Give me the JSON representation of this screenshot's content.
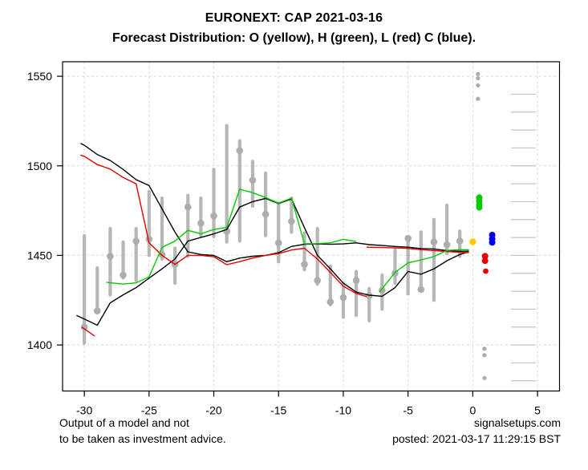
{
  "header": {
    "title": "EURONEXT: CAP 2021-03-16",
    "subtitle": "Forecast Distribution: O (yellow), H (green), L (red) C (blue)."
  },
  "footer": {
    "disclaimer_line1": "Output of a model and not",
    "disclaimer_line2": "to be taken as investment advice.",
    "site": "signalsetups.com",
    "posted": "posted: 2021-03-17 11:29:15 BST"
  },
  "colors": {
    "black": "#000000",
    "red": "#e60000",
    "green": "#00cc00",
    "yellow": "#ffc800",
    "blue": "#0000e6",
    "bar_gray": "#b7b7b7",
    "dot_gray": "#adadad",
    "grid": "#d9d9d9",
    "ruler": "#c4c4c4",
    "axis": "#000000"
  },
  "chart_data": {
    "type": "line",
    "title": "EURONEXT: CAP 2021-03-16",
    "subtitle": "Forecast Distribution: O (yellow), H (green), L (red) C (blue).",
    "xlabel": "",
    "ylabel": "",
    "legend": [
      {
        "label": "O",
        "color_name": "yellow"
      },
      {
        "label": "H",
        "color_name": "green"
      },
      {
        "label": "L",
        "color_name": "red"
      },
      {
        "label": "C",
        "color_name": "blue"
      }
    ],
    "x_axis": {
      "ticks": [
        -30,
        -25,
        -20,
        -15,
        -10,
        -5,
        0,
        5
      ],
      "range": [
        -31.68,
        6.7
      ]
    },
    "y_axis": {
      "ticks": [
        1400,
        1450,
        1500,
        1550
      ],
      "range": [
        1374.3,
        1558.1
      ]
    },
    "grid": {
      "style": "dashed",
      "x_at": [
        -30,
        -25,
        -20,
        -15,
        -10,
        -5,
        0,
        5
      ],
      "y_at": [
        1400,
        1450,
        1500,
        1550
      ]
    },
    "candles_note": "gray vertical bars = daily high-low range, gray dot = close",
    "candles": [
      {
        "t": -30,
        "high": 1461,
        "low": 1401,
        "close": 1410
      },
      {
        "t": -29,
        "high": 1443,
        "low": 1418,
        "close": 1419
      },
      {
        "t": -28,
        "high": 1465,
        "low": 1428,
        "close": 1449.5
      },
      {
        "t": -27,
        "high": 1457.5,
        "low": 1437.5,
        "close": 1439
      },
      {
        "t": -26,
        "high": 1465,
        "low": 1436,
        "close": 1458
      },
      {
        "t": -25,
        "high": 1485.5,
        "low": 1450,
        "close": 1459
      },
      {
        "t": -24,
        "high": 1482,
        "low": 1448,
        "close": 1450.5
      },
      {
        "t": -23,
        "high": 1454,
        "low": 1434.5,
        "close": 1445
      },
      {
        "t": -22,
        "high": 1483.5,
        "low": 1449.5,
        "close": 1477
      },
      {
        "t": -21,
        "high": 1482,
        "low": 1461,
        "close": 1468
      },
      {
        "t": -20,
        "high": 1498,
        "low": 1460.5,
        "close": 1472
      },
      {
        "t": -19,
        "high": 1522.5,
        "low": 1457.5,
        "close": 1463.5
      },
      {
        "t": -18,
        "high": 1514,
        "low": 1458,
        "close": 1508.5
      },
      {
        "t": -17,
        "high": 1502.5,
        "low": 1477.5,
        "close": 1492
      },
      {
        "t": -16,
        "high": 1496,
        "low": 1461,
        "close": 1473
      },
      {
        "t": -15,
        "high": 1479,
        "low": 1446.5,
        "close": 1457
      },
      {
        "t": -14,
        "high": 1482,
        "low": 1463,
        "close": 1469
      },
      {
        "t": -13,
        "high": 1462.5,
        "low": 1442,
        "close": 1445
      },
      {
        "t": -12,
        "high": 1465,
        "low": 1434,
        "close": 1436
      },
      {
        "t": -11,
        "high": 1444,
        "low": 1422.5,
        "close": 1424
      },
      {
        "t": -10,
        "high": 1434.5,
        "low": 1415.5,
        "close": 1426.5
      },
      {
        "t": -9,
        "high": 1441,
        "low": 1416.5,
        "close": 1436
      },
      {
        "t": -8,
        "high": 1431.5,
        "low": 1413.5,
        "close": 1427.5
      },
      {
        "t": -7,
        "high": 1439,
        "low": 1420,
        "close": 1430.5
      },
      {
        "t": -6,
        "high": 1453,
        "low": 1434.5,
        "close": 1440
      },
      {
        "t": -5,
        "high": 1460.5,
        "low": 1428.5,
        "close": 1459.5
      },
      {
        "t": -4,
        "high": 1463,
        "low": 1430,
        "close": 1431
      },
      {
        "t": -3,
        "high": 1470,
        "low": 1425,
        "close": 1457.5
      },
      {
        "t": -2,
        "high": 1478,
        "low": 1451,
        "close": 1456
      },
      {
        "t": -1,
        "high": 1463.5,
        "low": 1449.5,
        "close": 1458
      }
    ],
    "lines": [
      {
        "name": "upper-black-line",
        "color_name": "black",
        "points": [
          [
            -30.3,
            1512.5
          ],
          [
            -30,
            1511.5
          ],
          [
            -29,
            1506.3
          ],
          [
            -28,
            1503
          ],
          [
            -27,
            1498
          ],
          [
            -26,
            1492.3
          ],
          [
            -25,
            1489
          ],
          [
            -24,
            1476
          ],
          [
            -23,
            1463
          ],
          [
            -22,
            1452
          ],
          [
            -21,
            1450.5
          ],
          [
            -20,
            1450
          ],
          [
            -19,
            1446.5
          ],
          [
            -18,
            1448.5
          ],
          [
            -17,
            1449.5
          ],
          [
            -16,
            1450
          ],
          [
            -15,
            1451.5
          ],
          [
            -14,
            1455
          ],
          [
            -13,
            1456.2
          ],
          [
            -12,
            1456.4
          ],
          [
            -11,
            1456.2
          ],
          [
            -10,
            1456.4
          ],
          [
            -9,
            1457
          ],
          [
            -8,
            1456
          ],
          [
            -7,
            1455.5
          ],
          [
            -6,
            1455
          ],
          [
            -5,
            1454.6
          ],
          [
            -4,
            1453.8
          ],
          [
            -3,
            1453.6
          ],
          [
            -2,
            1452.7
          ],
          [
            -1,
            1452.3
          ],
          [
            -0.3,
            1452.4
          ]
        ]
      },
      {
        "name": "lower-black-line",
        "color_name": "black",
        "points": [
          [
            -30.6,
            1416.5
          ],
          [
            -30,
            1414.5
          ],
          [
            -29,
            1411
          ],
          [
            -28,
            1423.5
          ],
          [
            -27,
            1428
          ],
          [
            -26,
            1432
          ],
          [
            -25,
            1437.3
          ],
          [
            -24,
            1442.5
          ],
          [
            -23,
            1448
          ],
          [
            -22,
            1458
          ],
          [
            -21,
            1460
          ],
          [
            -20,
            1462
          ],
          [
            -19,
            1464.5
          ],
          [
            -18,
            1477
          ],
          [
            -17,
            1480
          ],
          [
            -16,
            1481.8
          ],
          [
            -15,
            1479
          ],
          [
            -14,
            1481.5
          ],
          [
            -13,
            1465.5
          ],
          [
            -12,
            1450
          ],
          [
            -11,
            1442.5
          ],
          [
            -10,
            1434.5
          ],
          [
            -9,
            1429.5
          ],
          [
            -8,
            1427.8
          ],
          [
            -7,
            1427.2
          ],
          [
            -6,
            1432
          ],
          [
            -5,
            1441
          ],
          [
            -4,
            1439.5
          ],
          [
            -3,
            1442.5
          ],
          [
            -2,
            1447
          ],
          [
            -1,
            1450.5
          ],
          [
            -0.3,
            1452
          ]
        ]
      },
      {
        "name": "red-line-main",
        "color_name": "red",
        "points": [
          [
            -30.3,
            1506
          ],
          [
            -30,
            1505.3
          ],
          [
            -29,
            1500.7
          ],
          [
            -28,
            1498.2
          ],
          [
            -27,
            1493.5
          ],
          [
            -26,
            1490
          ],
          [
            -25,
            1457
          ],
          [
            -24,
            1450
          ],
          [
            -23,
            1445
          ],
          [
            -22,
            1450
          ],
          [
            -21,
            1450
          ],
          [
            -20,
            1449.3
          ],
          [
            -19,
            1444.8
          ],
          [
            -18,
            1446.5
          ],
          [
            -17,
            1448.5
          ],
          [
            -16,
            1450
          ],
          [
            -15,
            1451
          ],
          [
            -14,
            1453
          ],
          [
            -13,
            1454
          ],
          [
            -12,
            1448
          ],
          [
            -11,
            1440.5
          ],
          [
            -10,
            1432.8
          ],
          [
            -9,
            1428.8
          ],
          [
            -8.2,
            1427
          ]
        ]
      },
      {
        "name": "red-line-start-stub",
        "color_name": "red",
        "points": [
          [
            -30.2,
            1410
          ],
          [
            -29.2,
            1405
          ]
        ]
      },
      {
        "name": "red-line-end",
        "color_name": "red",
        "points": [
          [
            -8.2,
            1454.6
          ],
          [
            -7,
            1454.4
          ],
          [
            -6,
            1454.2
          ],
          [
            -5,
            1453.9
          ],
          [
            -4,
            1453.2
          ],
          [
            -3,
            1452.7
          ],
          [
            -2,
            1452.2
          ],
          [
            -1,
            1451.7
          ],
          [
            -0.3,
            1451.6
          ]
        ]
      },
      {
        "name": "green-line-main",
        "color_name": "green",
        "points": [
          [
            -28.3,
            1435
          ],
          [
            -28,
            1434.7
          ],
          [
            -27,
            1434
          ],
          [
            -26,
            1434.7
          ],
          [
            -25,
            1438
          ],
          [
            -24,
            1454.5
          ],
          [
            -23,
            1458
          ],
          [
            -22,
            1464
          ],
          [
            -21,
            1462
          ],
          [
            -20,
            1464.5
          ],
          [
            -19,
            1465.7
          ],
          [
            -18,
            1487
          ],
          [
            -17,
            1485
          ],
          [
            -16,
            1482.3
          ],
          [
            -15,
            1479.2
          ],
          [
            -14,
            1482
          ],
          [
            -13,
            1456.5
          ],
          [
            -12,
            1456.6
          ],
          [
            -11,
            1457
          ],
          [
            -10,
            1459
          ],
          [
            -9,
            1457.7
          ]
        ]
      },
      {
        "name": "green-line-end",
        "color_name": "green",
        "points": [
          [
            -7.2,
            1429.5
          ],
          [
            -6,
            1440.5
          ],
          [
            -5,
            1445.8
          ],
          [
            -4,
            1447.5
          ],
          [
            -3,
            1449.3
          ],
          [
            -2,
            1452.8
          ],
          [
            -1,
            1453.2
          ],
          [
            -0.3,
            1453.2
          ]
        ]
      }
    ],
    "forecast_dots": [
      {
        "x": 0.4,
        "v": 1551.2,
        "color_name": "dot_gray",
        "r": 2.6
      },
      {
        "x": 0.4,
        "v": 1548.9,
        "color_name": "dot_gray",
        "r": 2.6
      },
      {
        "x": 0.4,
        "v": 1544.9,
        "color_name": "dot_gray",
        "r": 2.6
      },
      {
        "x": 0.4,
        "v": 1537.4,
        "color_name": "dot_gray",
        "r": 2.6
      },
      {
        "x": 0.5,
        "v": 1482.3,
        "color_name": "green",
        "r": 4
      },
      {
        "x": 0.5,
        "v": 1480.4,
        "color_name": "green",
        "r": 4
      },
      {
        "x": 0.5,
        "v": 1478.4,
        "color_name": "green",
        "r": 4
      },
      {
        "x": 0.5,
        "v": 1476.8,
        "color_name": "green",
        "r": 4
      },
      {
        "x": 0.0,
        "v": 1457.6,
        "color_name": "yellow",
        "r": 4.2
      },
      {
        "x": 1.5,
        "v": 1461.4,
        "color_name": "blue",
        "r": 4
      },
      {
        "x": 1.5,
        "v": 1459.2,
        "color_name": "blue",
        "r": 4
      },
      {
        "x": 1.5,
        "v": 1457.2,
        "color_name": "blue",
        "r": 4
      },
      {
        "x": 0.95,
        "v": 1449.6,
        "color_name": "red",
        "r": 4
      },
      {
        "x": 0.95,
        "v": 1447.0,
        "color_name": "red",
        "r": 4
      },
      {
        "x": 1.0,
        "v": 1441.2,
        "color_name": "red",
        "r": 3.4
      },
      {
        "x": 0.9,
        "v": 1397.9,
        "color_name": "dot_gray",
        "r": 2.6
      },
      {
        "x": 0.9,
        "v": 1394.3,
        "color_name": "dot_gray",
        "r": 2.6
      },
      {
        "x": 0.9,
        "v": 1381.5,
        "color_name": "dot_gray",
        "r": 2.6
      }
    ],
    "ruler": {
      "note": "distribution scale ticks on right side, every 10 points",
      "x_from": 2.95,
      "x_to": 4.87,
      "values": [
        1540,
        1530,
        1520,
        1510,
        1500,
        1490,
        1480,
        1470,
        1460,
        1450,
        1440,
        1430,
        1420,
        1410,
        1400,
        1390,
        1380
      ]
    }
  }
}
